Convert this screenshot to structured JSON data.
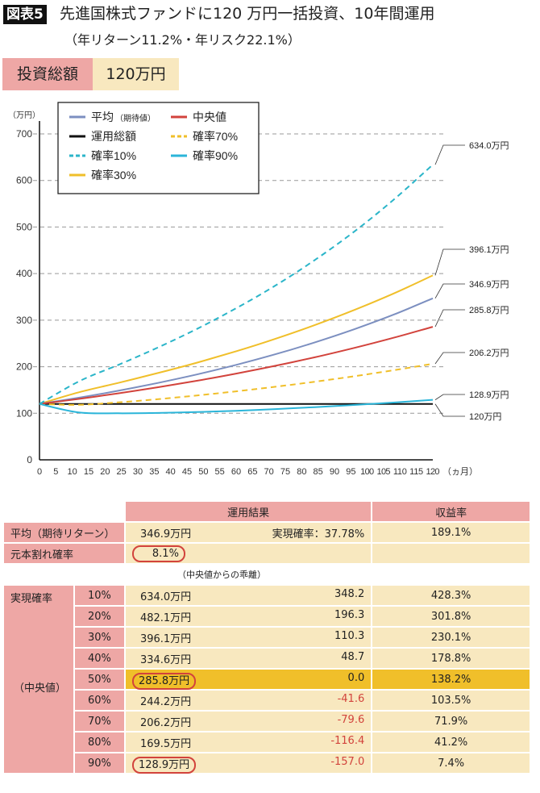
{
  "header": {
    "tag": "図表5",
    "title": "先進国株式ファンドに120 万円一括投資、10年間運用",
    "subtitle": "（年リターン11.2%・年リスク22.1%）",
    "invest_label": "投資総額",
    "invest_value": "120万円"
  },
  "chart_data": {
    "type": "line",
    "ylabel": "（万円）",
    "xlabel": "（ヵ月）",
    "xlim": [
      0,
      120
    ],
    "ylim": [
      0,
      700
    ],
    "xticks": [
      0,
      5,
      10,
      15,
      20,
      25,
      30,
      35,
      40,
      45,
      50,
      55,
      60,
      65,
      70,
      75,
      80,
      85,
      90,
      95,
      100,
      105,
      110,
      115,
      120
    ],
    "yticks": [
      0,
      100,
      200,
      300,
      400,
      500,
      600,
      700
    ],
    "grid": "horizontal dashed",
    "legend": "top-left",
    "x": [
      0,
      12,
      24,
      36,
      48,
      60,
      72,
      84,
      96,
      108,
      120
    ],
    "series": [
      {
        "name": "平均",
        "name_note": "（期待値）",
        "color": "#7c8fc0",
        "dash": false,
        "values": [
          120,
          133.4,
          148.4,
          165.0,
          183.4,
          204.0,
          226.8,
          252.2,
          280.4,
          311.7,
          346.9
        ]
      },
      {
        "name": "中央値",
        "color": "#d2433c",
        "dash": false,
        "values": [
          120,
          130.9,
          142.8,
          155.7,
          169.8,
          185.2,
          202.0,
          220.3,
          240.3,
          262.1,
          285.8
        ]
      },
      {
        "name": "運用総額",
        "color": "#111111",
        "dash": false,
        "values": [
          120,
          120,
          120,
          120,
          120,
          120,
          120,
          120,
          120,
          120,
          120
        ]
      },
      {
        "name": "確率70%",
        "color": "#f0bf2a",
        "dash": true,
        "values": [
          120,
          118.1,
          123.4,
          130.2,
          138.2,
          147.1,
          157.0,
          167.7,
          179.5,
          192.4,
          206.2
        ]
      },
      {
        "name": "確率10%",
        "color": "#2bb5c9",
        "dash": true,
        "values": [
          120,
          168.4,
          203.8,
          240.8,
          281.1,
          325.5,
          374.4,
          429.1,
          490.0,
          558.4,
          634.0
        ]
      },
      {
        "name": "確率90%",
        "color": "#2bb5d9",
        "dash": false,
        "values": [
          120,
          101.7,
          100.0,
          100.7,
          102.6,
          105.4,
          109.0,
          113.2,
          117.9,
          123.1,
          128.9
        ]
      },
      {
        "name": "確率30%",
        "color": "#f0bf2a",
        "dash": false,
        "values": [
          120,
          145.1,
          165.2,
          186.2,
          208.7,
          233.2,
          260.0,
          289.5,
          321.8,
          357.1,
          396.1
        ]
      }
    ],
    "end_labels": [
      "634.0万円",
      "396.1万円",
      "346.9万円",
      "285.8万円",
      "206.2万円",
      "128.9万円",
      "120万円"
    ],
    "distribution_color": "#eea7a5"
  },
  "table": {
    "headers": [
      "運用結果",
      "収益率"
    ],
    "mean": {
      "label": "平均（期待リターン）",
      "value": "346.9万円",
      "prob": "実現確率：37.78%",
      "yield": "189.1%"
    },
    "loss": {
      "label": "元本割れ確率",
      "value": "8.1%"
    },
    "deviation_note": "（中央値からの乖離）",
    "group_label": "実現確率",
    "median_label": "（中央値）",
    "rows": [
      {
        "p": "10%",
        "value": "634.0万円",
        "dev": "348.2",
        "yield": "428.3%"
      },
      {
        "p": "20%",
        "value": "482.1万円",
        "dev": "196.3",
        "yield": "301.8%"
      },
      {
        "p": "30%",
        "value": "396.1万円",
        "dev": "110.3",
        "yield": "230.1%"
      },
      {
        "p": "40%",
        "value": "334.6万円",
        "dev": "48.7",
        "yield": "178.8%"
      },
      {
        "p": "50%",
        "value": "285.8万円",
        "dev": "0.0",
        "yield": "138.2%"
      },
      {
        "p": "60%",
        "value": "244.2万円",
        "dev": "-41.6",
        "yield": "103.5%"
      },
      {
        "p": "70%",
        "value": "206.2万円",
        "dev": "-79.6",
        "yield": "71.9%"
      },
      {
        "p": "80%",
        "value": "169.5万円",
        "dev": "-116.4",
        "yield": "41.2%"
      },
      {
        "p": "90%",
        "value": "128.9万円",
        "dev": "-157.0",
        "yield": "7.4%"
      }
    ]
  }
}
